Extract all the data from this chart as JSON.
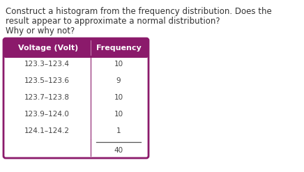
{
  "question_line1": "Construct a histogram from the frequency distribution. Does the",
  "question_line2": "result appear to approximate a normal distribution?",
  "question_line3": "Why or why not?",
  "header_col1": "Voltage (Volt)",
  "header_col2": "Frequency",
  "rows": [
    [
      "123.3–123.4",
      "10"
    ],
    [
      "123.5–123.6",
      "9"
    ],
    [
      "123.7–123.8",
      "10"
    ],
    [
      "123.9–124.0",
      "10"
    ],
    [
      "124.1–124.2",
      "1"
    ]
  ],
  "total": "40",
  "header_bg": "#8B1A6B",
  "header_text_color": "#ffffff",
  "table_border_color": "#8B1A6B",
  "table_bg": "#ffffff",
  "text_color": "#444444",
  "background_color": "#ffffff",
  "question_fontsize": 8.5,
  "header_fontsize": 8.0,
  "row_fontsize": 7.5
}
